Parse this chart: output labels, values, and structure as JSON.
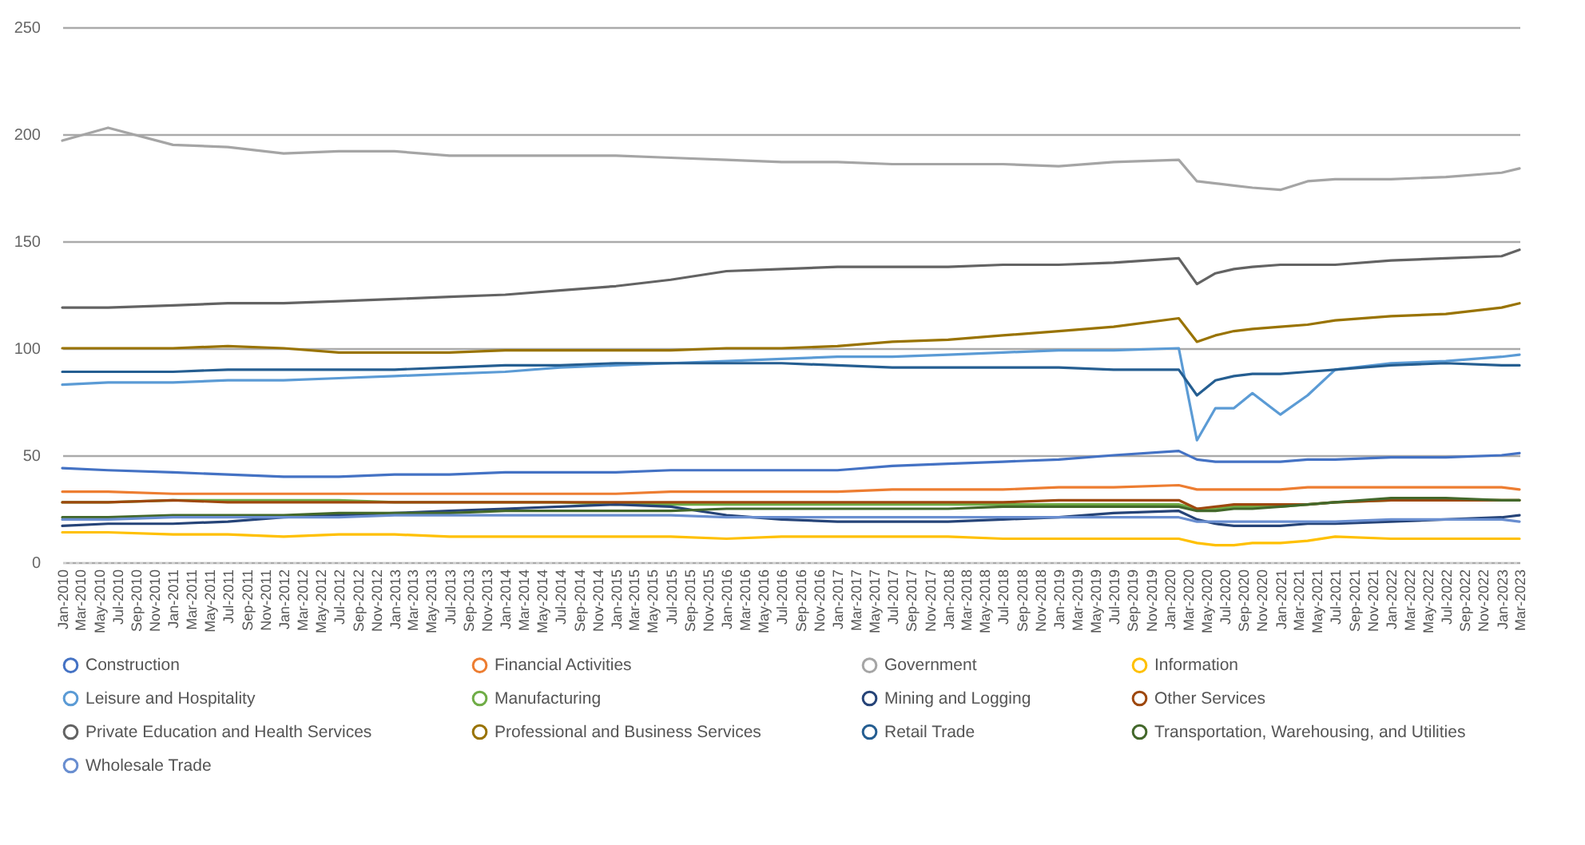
{
  "chart_data": {
    "type": "line",
    "x": [
      "2010-01",
      "2010-06",
      "2011-01",
      "2011-07",
      "2012-01",
      "2012-07",
      "2013-01",
      "2013-07",
      "2014-01",
      "2014-07",
      "2015-01",
      "2015-07",
      "2016-01",
      "2016-07",
      "2017-01",
      "2017-07",
      "2018-01",
      "2018-07",
      "2019-01",
      "2019-07",
      "2020-02",
      "2020-04",
      "2020-06",
      "2020-08",
      "2020-10",
      "2021-01",
      "2021-04",
      "2021-07",
      "2022-01",
      "2022-07",
      "2023-01",
      "2023-03"
    ],
    "series": [
      {
        "name": "Construction",
        "color": "#4472c4",
        "values": [
          44,
          43,
          42,
          41,
          40,
          40,
          41,
          41,
          42,
          42,
          42,
          43,
          43,
          43,
          43,
          45,
          46,
          47,
          48,
          50,
          52,
          48,
          47,
          47,
          47,
          47,
          48,
          48,
          49,
          49,
          50,
          51
        ]
      },
      {
        "name": "Financial Activities",
        "color": "#ed7d31",
        "values": [
          33,
          33,
          32,
          32,
          32,
          32,
          32,
          32,
          32,
          32,
          32,
          33,
          33,
          33,
          33,
          34,
          34,
          34,
          35,
          35,
          36,
          34,
          34,
          34,
          34,
          34,
          35,
          35,
          35,
          35,
          35,
          34
        ]
      },
      {
        "name": "Government",
        "color": "#a5a5a5",
        "values": [
          197,
          203,
          195,
          194,
          191,
          192,
          192,
          190,
          190,
          190,
          190,
          189,
          188,
          187,
          187,
          186,
          186,
          186,
          185,
          187,
          188,
          178,
          177,
          176,
          175,
          174,
          178,
          179,
          179,
          180,
          182,
          184
        ]
      },
      {
        "name": "Information",
        "color": "#ffc000",
        "values": [
          14,
          14,
          13,
          13,
          12,
          13,
          13,
          12,
          12,
          12,
          12,
          12,
          11,
          12,
          12,
          12,
          12,
          11,
          11,
          11,
          11,
          9,
          8,
          8,
          9,
          9,
          10,
          12,
          11,
          11,
          11,
          11
        ]
      },
      {
        "name": "Leisure and Hospitality",
        "color": "#5b9bd5",
        "values": [
          83,
          84,
          84,
          85,
          85,
          86,
          87,
          88,
          89,
          91,
          92,
          93,
          94,
          95,
          96,
          96,
          97,
          98,
          99,
          99,
          100,
          57,
          72,
          72,
          79,
          69,
          78,
          90,
          93,
          94,
          96,
          97
        ]
      },
      {
        "name": "Manufacturing",
        "color": "#70ad47",
        "values": [
          28,
          28,
          29,
          29,
          29,
          29,
          28,
          28,
          28,
          28,
          27,
          27,
          27,
          27,
          27,
          27,
          27,
          27,
          27,
          27,
          27,
          25,
          25,
          26,
          26,
          26,
          27,
          28,
          29,
          29,
          29,
          29
        ]
      },
      {
        "name": "Mining and Logging",
        "color": "#264478",
        "values": [
          17,
          18,
          18,
          19,
          21,
          22,
          23,
          24,
          25,
          26,
          27,
          26,
          22,
          20,
          19,
          19,
          19,
          20,
          21,
          23,
          24,
          20,
          18,
          17,
          17,
          17,
          18,
          18,
          19,
          20,
          21,
          22
        ]
      },
      {
        "name": "Other Services",
        "color": "#9e480e",
        "values": [
          28,
          28,
          29,
          28,
          28,
          28,
          28,
          28,
          28,
          28,
          28,
          28,
          28,
          28,
          28,
          28,
          28,
          28,
          29,
          29,
          29,
          25,
          26,
          27,
          27,
          27,
          27,
          28,
          29,
          29,
          29,
          29
        ]
      },
      {
        "name": "Private Education and Health Services",
        "color": "#636363",
        "values": [
          119,
          119,
          120,
          121,
          121,
          122,
          123,
          124,
          125,
          127,
          129,
          132,
          136,
          137,
          138,
          138,
          138,
          139,
          139,
          140,
          142,
          130,
          135,
          137,
          138,
          139,
          139,
          139,
          141,
          142,
          143,
          146
        ]
      },
      {
        "name": "Professional and Business Services",
        "color": "#997300",
        "values": [
          100,
          100,
          100,
          101,
          100,
          98,
          98,
          98,
          99,
          99,
          99,
          99,
          100,
          100,
          101,
          103,
          104,
          106,
          108,
          110,
          114,
          103,
          106,
          108,
          109,
          110,
          111,
          113,
          115,
          116,
          119,
          121
        ]
      },
      {
        "name": "Retail Trade",
        "color": "#255e91",
        "values": [
          89,
          89,
          89,
          90,
          90,
          90,
          90,
          91,
          92,
          92,
          93,
          93,
          93,
          93,
          92,
          91,
          91,
          91,
          91,
          90,
          90,
          78,
          85,
          87,
          88,
          88,
          89,
          90,
          92,
          93,
          92,
          92
        ]
      },
      {
        "name": "Transportation, Warehousing, and Utilities",
        "color": "#43682b",
        "values": [
          21,
          21,
          22,
          22,
          22,
          23,
          23,
          23,
          24,
          24,
          24,
          24,
          25,
          25,
          25,
          25,
          25,
          26,
          26,
          26,
          26,
          24,
          24,
          25,
          25,
          26,
          27,
          28,
          30,
          30,
          29,
          29
        ]
      },
      {
        "name": "Wholesale Trade",
        "color": "#698ed0",
        "values": [
          20,
          20,
          21,
          21,
          21,
          21,
          22,
          22,
          22,
          22,
          22,
          22,
          21,
          21,
          21,
          21,
          21,
          21,
          21,
          21,
          21,
          19,
          19,
          19,
          19,
          19,
          19,
          19,
          20,
          20,
          20,
          19
        ]
      }
    ],
    "xlim": [
      "2010-01",
      "2023-03"
    ],
    "xticks": [
      {
        "value": "2010-01",
        "label": "Jan-2010"
      },
      {
        "value": "2010-03",
        "label": "Mar-2010"
      },
      {
        "value": "2010-05",
        "label": "May-2010"
      },
      {
        "value": "2010-07",
        "label": "Jul-2010"
      },
      {
        "value": "2010-09",
        "label": "Sep-2010"
      },
      {
        "value": "2010-11",
        "label": "Nov-2010"
      },
      {
        "value": "2011-01",
        "label": "Jan-2011"
      },
      {
        "value": "2011-03",
        "label": "Mar-2011"
      },
      {
        "value": "2011-05",
        "label": "May-2011"
      },
      {
        "value": "2011-07",
        "label": "Jul-2011"
      },
      {
        "value": "2011-09",
        "label": "Sep-2011"
      },
      {
        "value": "2011-11",
        "label": "Nov-2011"
      },
      {
        "value": "2012-01",
        "label": "Jan-2012"
      },
      {
        "value": "2012-03",
        "label": "Mar-2012"
      },
      {
        "value": "2012-05",
        "label": "May-2012"
      },
      {
        "value": "2012-07",
        "label": "Jul-2012"
      },
      {
        "value": "2012-09",
        "label": "Sep-2012"
      },
      {
        "value": "2012-11",
        "label": "Nov-2012"
      },
      {
        "value": "2013-01",
        "label": "Jan-2013"
      },
      {
        "value": "2013-03",
        "label": "Mar-2013"
      },
      {
        "value": "2013-05",
        "label": "May-2013"
      },
      {
        "value": "2013-07",
        "label": "Jul-2013"
      },
      {
        "value": "2013-09",
        "label": "Sep-2013"
      },
      {
        "value": "2013-11",
        "label": "Nov-2013"
      },
      {
        "value": "2014-01",
        "label": "Jan-2014"
      },
      {
        "value": "2014-03",
        "label": "Mar-2014"
      },
      {
        "value": "2014-05",
        "label": "May-2014"
      },
      {
        "value": "2014-07",
        "label": "Jul-2014"
      },
      {
        "value": "2014-09",
        "label": "Sep-2014"
      },
      {
        "value": "2014-11",
        "label": "Nov-2014"
      },
      {
        "value": "2015-01",
        "label": "Jan-2015"
      },
      {
        "value": "2015-03",
        "label": "Mar-2015"
      },
      {
        "value": "2015-05",
        "label": "May-2015"
      },
      {
        "value": "2015-07",
        "label": "Jul-2015"
      },
      {
        "value": "2015-09",
        "label": "Sep-2015"
      },
      {
        "value": "2015-11",
        "label": "Nov-2015"
      },
      {
        "value": "2016-01",
        "label": "Jan-2016"
      },
      {
        "value": "2016-03",
        "label": "Mar-2016"
      },
      {
        "value": "2016-05",
        "label": "May-2016"
      },
      {
        "value": "2016-07",
        "label": "Jul-2016"
      },
      {
        "value": "2016-09",
        "label": "Sep-2016"
      },
      {
        "value": "2016-11",
        "label": "Nov-2016"
      },
      {
        "value": "2017-01",
        "label": "Jan-2017"
      },
      {
        "value": "2017-03",
        "label": "Mar-2017"
      },
      {
        "value": "2017-05",
        "label": "May-2017"
      },
      {
        "value": "2017-07",
        "label": "Jul-2017"
      },
      {
        "value": "2017-09",
        "label": "Sep-2017"
      },
      {
        "value": "2017-11",
        "label": "Nov-2017"
      },
      {
        "value": "2018-01",
        "label": "Jan-2018"
      },
      {
        "value": "2018-03",
        "label": "Mar-2018"
      },
      {
        "value": "2018-05",
        "label": "May-2018"
      },
      {
        "value": "2018-07",
        "label": "Jul-2018"
      },
      {
        "value": "2018-09",
        "label": "Sep-2018"
      },
      {
        "value": "2018-11",
        "label": "Nov-2018"
      },
      {
        "value": "2019-01",
        "label": "Jan-2019"
      },
      {
        "value": "2019-03",
        "label": "Mar-2019"
      },
      {
        "value": "2019-05",
        "label": "May-2019"
      },
      {
        "value": "2019-07",
        "label": "Jul-2019"
      },
      {
        "value": "2019-09",
        "label": "Sep-2019"
      },
      {
        "value": "2019-11",
        "label": "Nov-2019"
      },
      {
        "value": "2020-01",
        "label": "Jan-2020"
      },
      {
        "value": "2020-03",
        "label": "Mar-2020"
      },
      {
        "value": "2020-05",
        "label": "May-2020"
      },
      {
        "value": "2020-07",
        "label": "Jul-2020"
      },
      {
        "value": "2020-09",
        "label": "Sep-2020"
      },
      {
        "value": "2020-11",
        "label": "Nov-2020"
      },
      {
        "value": "2021-01",
        "label": "Jan-2021"
      },
      {
        "value": "2021-03",
        "label": "Mar-2021"
      },
      {
        "value": "2021-05",
        "label": "May-2021"
      },
      {
        "value": "2021-07",
        "label": "Jul-2021"
      },
      {
        "value": "2021-09",
        "label": "Sep-2021"
      },
      {
        "value": "2021-11",
        "label": "Nov-2021"
      },
      {
        "value": "2022-01",
        "label": "Jan-2022"
      },
      {
        "value": "2022-03",
        "label": "Mar-2022"
      },
      {
        "value": "2022-05",
        "label": "May-2022"
      },
      {
        "value": "2022-07",
        "label": "Jul-2022"
      },
      {
        "value": "2022-09",
        "label": "Sep-2022"
      },
      {
        "value": "2022-11",
        "label": "Nov-2022"
      },
      {
        "value": "2023-01",
        "label": "Jan-2023"
      },
      {
        "value": "2023-03",
        "label": "Mar-2023"
      }
    ],
    "ylim": [
      0,
      250
    ],
    "yticks": [
      0,
      50,
      100,
      150,
      200,
      250
    ],
    "grid": "y",
    "legend": "bottom"
  }
}
